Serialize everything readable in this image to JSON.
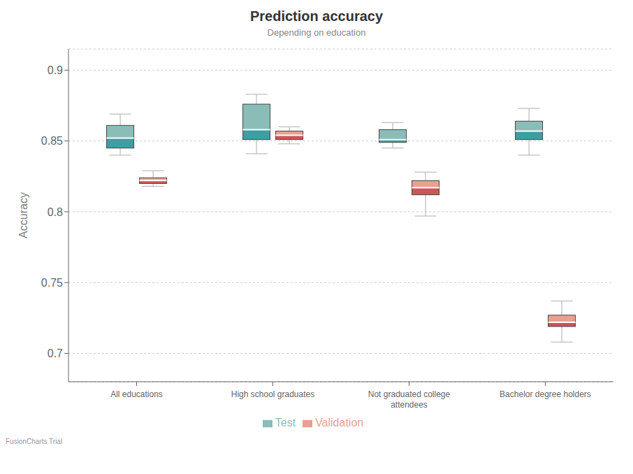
{
  "chart_data": {
    "type": "box",
    "title": "Prediction accuracy",
    "subtitle": "Depending on education",
    "ylabel": "Accuracy",
    "annotation": "FusionCharts Trial",
    "categories": [
      "All educations",
      "High school graduates",
      "Not graduated college\nattendees",
      "Bachelor degree holders"
    ],
    "ylim": [
      0.68,
      0.915
    ],
    "yticks": [
      0.7,
      0.75,
      0.8,
      0.85,
      0.9
    ],
    "grid": true,
    "legend": "bottom",
    "whisker_color": "#bbbbbb",
    "median_color": "#ffffff",
    "series": [
      {
        "name": "Test",
        "color": "#8bbdb8",
        "lower_color": "#3d9ea3",
        "values": [
          {
            "whislo": 0.84,
            "q1": 0.845,
            "med": 0.852,
            "q3": 0.861,
            "whishi": 0.869
          },
          {
            "whislo": 0.841,
            "q1": 0.851,
            "med": 0.858,
            "q3": 0.876,
            "whishi": 0.883
          },
          {
            "whislo": 0.845,
            "q1": 0.849,
            "med": 0.851,
            "q3": 0.858,
            "whishi": 0.863
          },
          {
            "whislo": 0.84,
            "q1": 0.851,
            "med": 0.857,
            "q3": 0.864,
            "whishi": 0.873
          }
        ]
      },
      {
        "name": "Validation",
        "color": "#e8a090",
        "lower_color": "#cc5555",
        "values": [
          {
            "whislo": 0.818,
            "q1": 0.82,
            "med": 0.822,
            "q3": 0.824,
            "whishi": 0.829
          },
          {
            "whislo": 0.848,
            "q1": 0.851,
            "med": 0.854,
            "q3": 0.857,
            "whishi": 0.86
          },
          {
            "whislo": 0.797,
            "q1": 0.812,
            "med": 0.817,
            "q3": 0.822,
            "whishi": 0.828
          },
          {
            "whislo": 0.708,
            "q1": 0.719,
            "med": 0.722,
            "q3": 0.727,
            "whishi": 0.737
          }
        ]
      }
    ]
  }
}
